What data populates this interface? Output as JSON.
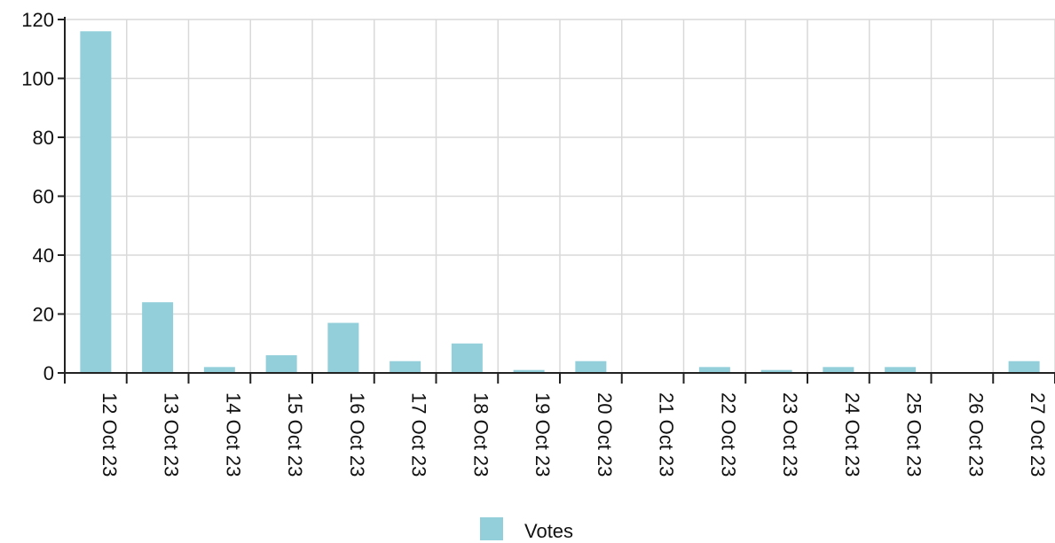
{
  "chart_data": {
    "type": "bar",
    "categories": [
      "12 Oct 23",
      "13 Oct 23",
      "14 Oct 23",
      "15 Oct 23",
      "16 Oct 23",
      "17 Oct 23",
      "18 Oct 23",
      "19 Oct 23",
      "20 Oct 23",
      "21 Oct 23",
      "22 Oct 23",
      "23 Oct 23",
      "24 Oct 23",
      "25 Oct 23",
      "26 Oct 23",
      "27 Oct 23"
    ],
    "series": [
      {
        "name": "Votes",
        "values": [
          116,
          24,
          2,
          6,
          17,
          4,
          10,
          1,
          4,
          0,
          2,
          1,
          2,
          2,
          0,
          4
        ],
        "color": "#92cfdb"
      }
    ],
    "ylim": [
      0,
      120
    ],
    "yticks": [
      0,
      20,
      40,
      60,
      80,
      100,
      120
    ],
    "grid": true,
    "legend_position": "bottom-center",
    "x_tick_label_rotation": "vertical",
    "title": "",
    "xlabel": "",
    "ylabel": ""
  }
}
